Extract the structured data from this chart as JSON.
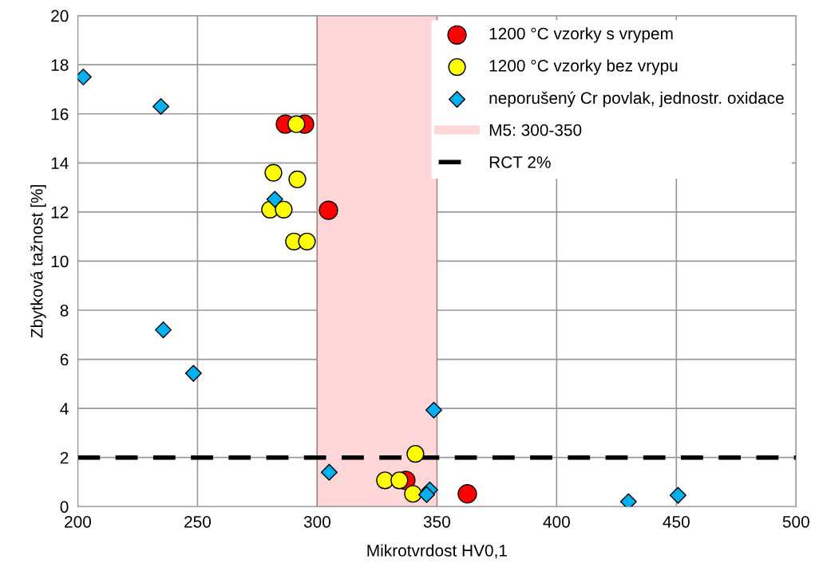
{
  "chart_data": {
    "type": "scatter",
    "xlabel": "Mikrotvrdost HV0,1",
    "ylabel": "Zbytková tažnost [%]",
    "xlim": [
      200,
      500
    ],
    "xticks": [
      200,
      250,
      300,
      350,
      400,
      450,
      500
    ],
    "ylim": [
      0,
      20
    ],
    "yticks": [
      0,
      2,
      4,
      6,
      8,
      10,
      12,
      14,
      16,
      18,
      20
    ],
    "grid": true,
    "legend": "top right",
    "series": [
      {
        "name": "1200 °C vzorky s vrypem",
        "color": "#ff0000",
        "marker": "circle",
        "x": [
          286.7,
          294.7,
          304.7,
          337,
          362.7
        ],
        "values": [
          15.58,
          15.58,
          12.07,
          1.07,
          0.52
        ]
      },
      {
        "name": "1200 °C vzorky bez vrypu",
        "color": "#ffff00",
        "marker": "circle",
        "x": [
          291.3,
          281.7,
          291.7,
          280.3,
          286,
          290.3,
          295.7,
          341,
          328.3,
          334.3,
          340
        ],
        "values": [
          15.58,
          13.6,
          13.33,
          12.1,
          12.1,
          10.8,
          10.8,
          2.15,
          1.07,
          1.07,
          0.52
        ]
      },
      {
        "name": "neporušený Cr povlak, jednostr. oxidace",
        "color": "#00b0f0",
        "marker": "diamond",
        "x": [
          202.3,
          234.7,
          282.3,
          235.7,
          248.3,
          348.7,
          305,
          347,
          345.7,
          430,
          450.7
        ],
        "values": [
          17.5,
          16.3,
          12.52,
          7.2,
          5.43,
          3.93,
          1.4,
          0.68,
          0.49,
          0.2,
          0.46
        ]
      }
    ],
    "bands": [
      {
        "axis": "x",
        "from": 300,
        "to": 350,
        "label": "M5: 300-350",
        "color": "#ffd7d9"
      }
    ],
    "ref_lines": [
      {
        "axis": "y",
        "value": 2,
        "label": "RCT 2%",
        "color": "#000000",
        "line_style": "dashed"
      }
    ]
  }
}
